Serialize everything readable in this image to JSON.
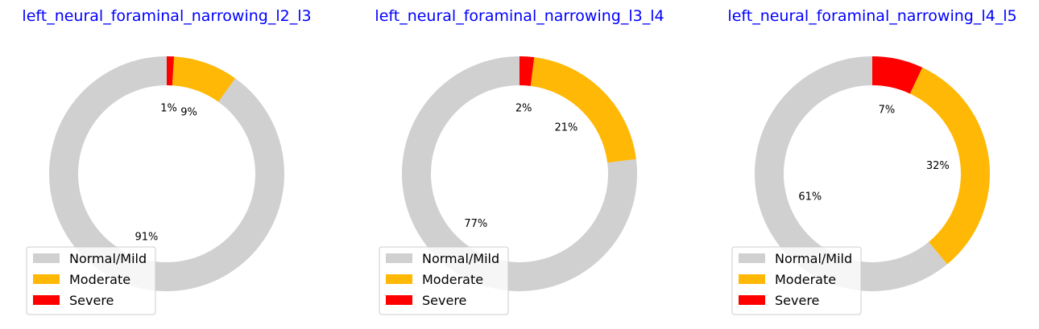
{
  "chart_data": [
    {
      "type": "pie",
      "title": "left_neural_foraminal_narrowing_l2_l3",
      "categories": [
        "Normal/Mild",
        "Moderate",
        "Severe"
      ],
      "values": [
        91,
        9,
        1
      ],
      "labels": [
        "91%",
        "9%",
        "1%"
      ],
      "legend": {
        "location": "lower-left",
        "entries": [
          "Normal/Mild",
          "Moderate",
          "Severe"
        ]
      }
    },
    {
      "type": "pie",
      "title": "left_neural_foraminal_narrowing_l3_l4",
      "categories": [
        "Normal/Mild",
        "Moderate",
        "Severe"
      ],
      "values": [
        77,
        21,
        2
      ],
      "labels": [
        "77%",
        "21%",
        "2%"
      ],
      "legend": {
        "location": "lower-left",
        "entries": [
          "Normal/Mild",
          "Moderate",
          "Severe"
        ]
      }
    },
    {
      "type": "pie",
      "title": "left_neural_foraminal_narrowing_l4_l5",
      "categories": [
        "Normal/Mild",
        "Moderate",
        "Severe"
      ],
      "values": [
        61,
        32,
        7
      ],
      "labels": [
        "61%",
        "32%",
        "7%"
      ],
      "legend": {
        "location": "lower-left",
        "entries": [
          "Normal/Mild",
          "Moderate",
          "Severe"
        ]
      }
    }
  ],
  "colors": {
    "Normal/Mild": "#d0d0d0",
    "Moderate": "#ffb805",
    "Severe": "#ff0000",
    "title": "#0000ff"
  }
}
